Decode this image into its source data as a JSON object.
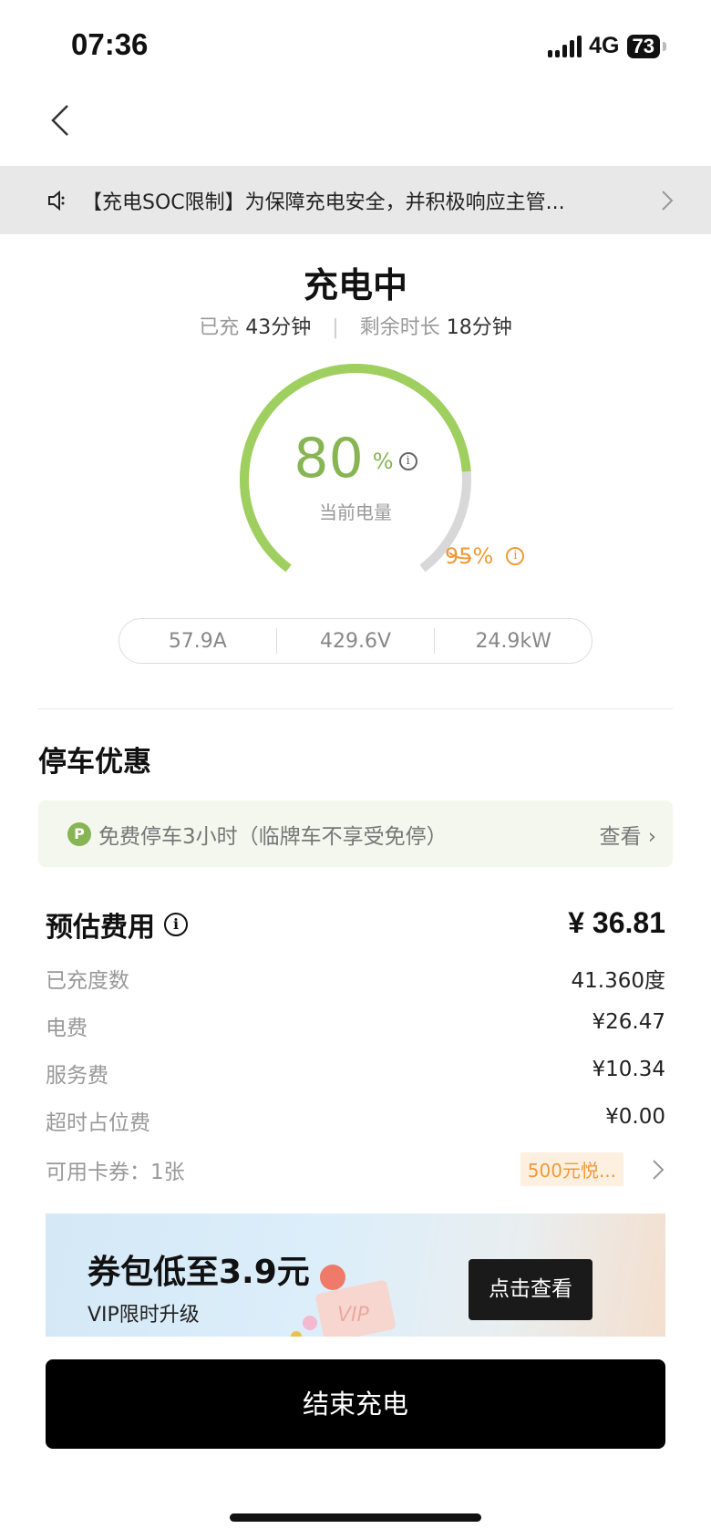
{
  "status_bar": {
    "time": "07:36",
    "network": "4G",
    "battery": "73"
  },
  "notice": {
    "text": "【充电SOC限制】为保障充电安全，并积极响应主管...",
    "icon": "speaker-icon"
  },
  "charging": {
    "title": "充电中",
    "charged_label": "已充",
    "charged_value": "43分钟",
    "remaining_label": "剩余时长",
    "remaining_value": "18分钟",
    "soc_percent": 80,
    "soc_text": "80",
    "soc_unit": "%",
    "soc_label": "当前电量",
    "target_text": "95%",
    "target_percent": 95,
    "colors": {
      "progress": "#9fcf5f",
      "track": "#d8d8d8",
      "target": "#ef9a3a"
    },
    "metrics": [
      "57.9A",
      "429.6V",
      "24.9kW"
    ]
  },
  "parking": {
    "title": "停车优惠",
    "badge": "P",
    "text": "免费停车3小时（临牌车不享受免停）",
    "link": "查看 ›"
  },
  "fees": {
    "title": "预估费用",
    "total": "¥ 36.81",
    "rows": [
      {
        "label": "已充度数",
        "value": "41.360度"
      },
      {
        "label": "电费",
        "value": "¥26.47"
      },
      {
        "label": "服务费",
        "value": "¥10.34"
      },
      {
        "label": "超时占位费",
        "value": "¥0.00"
      }
    ],
    "coupon_label": "可用卡券：1张",
    "coupon_tag": "500元悦..."
  },
  "banner": {
    "headline": "券包低至3.9元",
    "sub": "VIP限时升级",
    "button": "点击查看",
    "art_text": "VIP"
  },
  "end_button": "结束充电",
  "back": "‹"
}
